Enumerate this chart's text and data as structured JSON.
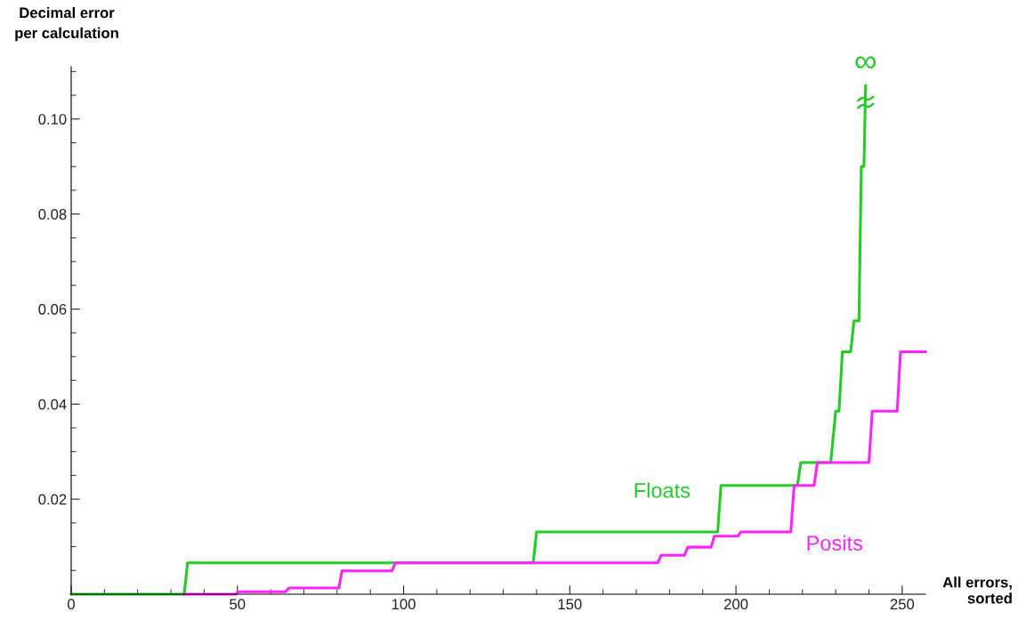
{
  "chart_data": {
    "type": "line",
    "xlabel": "All errors,\nsorted",
    "ylabel": "Decimal error\nper calculation",
    "xlim": [
      0,
      257
    ],
    "ylim": [
      0,
      0.111
    ],
    "xticks": [
      0,
      {
        "value": 10,
        "label": null
      },
      {
        "value": 20,
        "label": null
      },
      {
        "value": 30,
        "label": null
      },
      {
        "value": 40,
        "label": null
      },
      50,
      {
        "value": 60,
        "label": null
      },
      {
        "value": 70,
        "label": null
      },
      {
        "value": 80,
        "label": null
      },
      {
        "value": 90,
        "label": null
      },
      100,
      {
        "value": 110,
        "label": null
      },
      {
        "value": 120,
        "label": null
      },
      {
        "value": 130,
        "label": null
      },
      {
        "value": 140,
        "label": null
      },
      150,
      {
        "value": 160,
        "label": null
      },
      {
        "value": 170,
        "label": null
      },
      {
        "value": 180,
        "label": null
      },
      {
        "value": 190,
        "label": null
      },
      200,
      {
        "value": 210,
        "label": null
      },
      {
        "value": 220,
        "label": null
      },
      {
        "value": 230,
        "label": null
      },
      {
        "value": 240,
        "label": null
      },
      250
    ],
    "yticks": [
      {
        "value": 0.005,
        "label": null
      },
      {
        "value": 0.01,
        "label": null
      },
      {
        "value": 0.015,
        "label": null
      },
      0.02,
      {
        "value": 0.025,
        "label": null
      },
      {
        "value": 0.03,
        "label": null
      },
      {
        "value": 0.035,
        "label": null
      },
      0.04,
      {
        "value": 0.045,
        "label": null
      },
      {
        "value": 0.05,
        "label": null
      },
      {
        "value": 0.055,
        "label": null
      },
      0.06,
      {
        "value": 0.065,
        "label": null
      },
      {
        "value": 0.07,
        "label": null
      },
      {
        "value": 0.075,
        "label": null
      },
      0.08,
      {
        "value": 0.085,
        "label": null
      },
      {
        "value": 0.09,
        "label": null
      },
      {
        "value": 0.095,
        "label": null
      },
      {
        "value": 0.1,
        "label": "0.10"
      },
      {
        "value": 0.105,
        "label": null
      },
      {
        "value": 0.11,
        "label": null
      }
    ],
    "grid": false,
    "marker": "none",
    "line_style": "solid",
    "series": [
      {
        "name": "Floats",
        "color": "#22cc22",
        "x": [
          0,
          34,
          35,
          139,
          140,
          194.5,
          195.5,
          218.5,
          219.5,
          228.5,
          230,
          231,
          232,
          234.5,
          235.5,
          237,
          237.7,
          238.5,
          239
        ],
        "values": [
          0,
          0,
          0.0066,
          0.0066,
          0.0131,
          0.0131,
          0.0229,
          0.0229,
          0.0277,
          0.0277,
          0.0385,
          0.0385,
          0.051,
          0.051,
          0.0575,
          0.0575,
          0.09,
          0.09,
          0.107
        ]
      },
      {
        "name": "Posits",
        "color": "#ff22ff",
        "x": [
          34,
          49.5,
          50.5,
          64.5,
          65.5,
          80.5,
          81.5,
          96.5,
          97.5,
          176.5,
          177.5,
          184.5,
          185.5,
          192.5,
          193.5,
          200.5,
          201.5,
          216.5,
          217.5,
          223.5,
          224.5,
          240,
          241,
          248.5,
          249.5,
          257
        ],
        "values": [
          0,
          0,
          0.0005,
          0.0005,
          0.0013,
          0.0013,
          0.0049,
          0.0049,
          0.0066,
          0.0066,
          0.0082,
          0.0082,
          0.0099,
          0.0099,
          0.0122,
          0.0122,
          0.0131,
          0.0131,
          0.0229,
          0.0229,
          0.0277,
          0.0277,
          0.0385,
          0.0385,
          0.051,
          0.051
        ]
      }
    ],
    "annotations": [
      {
        "text": "∞",
        "x": 239,
        "y": 0.107
      }
    ]
  }
}
